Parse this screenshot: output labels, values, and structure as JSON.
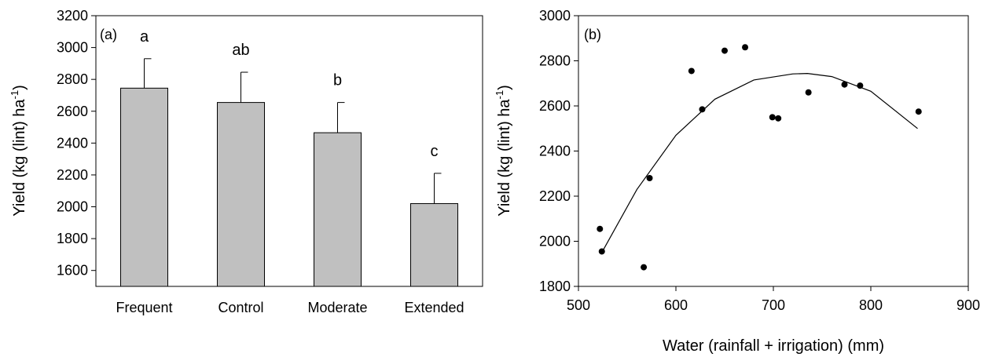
{
  "chart_data": [
    {
      "type": "bar",
      "panel_label": "(a)",
      "categories": [
        "Frequent",
        "Control",
        "Moderate",
        "Extended"
      ],
      "values": [
        2745,
        2655,
        2465,
        2020
      ],
      "error_plus": [
        185,
        190,
        190,
        190
      ],
      "significance_letters": [
        "a",
        "ab",
        "b",
        "c"
      ],
      "bar_color": "#c0c0c0",
      "xlabel": "",
      "ylabel": "Yield (kg (lint) ha",
      "ylabel_superscript": "-1",
      "ylabel_suffix": ")",
      "ylim": [
        1500,
        3200
      ],
      "yticks": [
        1600,
        1800,
        2000,
        2200,
        2400,
        2600,
        2800,
        3000,
        3200
      ],
      "grid": false
    },
    {
      "type": "scatter",
      "panel_label": "(b)",
      "points": [
        {
          "x": 522,
          "y": 2055
        },
        {
          "x": 524,
          "y": 1955
        },
        {
          "x": 567,
          "y": 1885
        },
        {
          "x": 573,
          "y": 2280
        },
        {
          "x": 616,
          "y": 2755
        },
        {
          "x": 627,
          "y": 2585
        },
        {
          "x": 650,
          "y": 2845
        },
        {
          "x": 671,
          "y": 2860
        },
        {
          "x": 699,
          "y": 2550
        },
        {
          "x": 705,
          "y": 2545
        },
        {
          "x": 736,
          "y": 2660
        },
        {
          "x": 773,
          "y": 2695
        },
        {
          "x": 789,
          "y": 2690
        },
        {
          "x": 849,
          "y": 2575
        }
      ],
      "fit_line": {
        "kind": "quadratic",
        "x": [
          525,
          560,
          600,
          640,
          680,
          720,
          735,
          760,
          800,
          848
        ],
        "y": [
          1958,
          2230,
          2470,
          2630,
          2715,
          2742,
          2744,
          2730,
          2665,
          2500
        ]
      },
      "point_color": "#000000",
      "xlabel": "Water (rainfall + irrigation) (mm)",
      "ylabel": "Yield (kg (lint) ha",
      "ylabel_superscript": "-1",
      "ylabel_suffix": ")",
      "xlim": [
        500,
        900
      ],
      "ylim": [
        1800,
        3000
      ],
      "xticks": [
        500,
        600,
        700,
        800,
        900
      ],
      "yticks": [
        1800,
        2000,
        2200,
        2400,
        2600,
        2800,
        3000
      ],
      "grid": false
    }
  ]
}
